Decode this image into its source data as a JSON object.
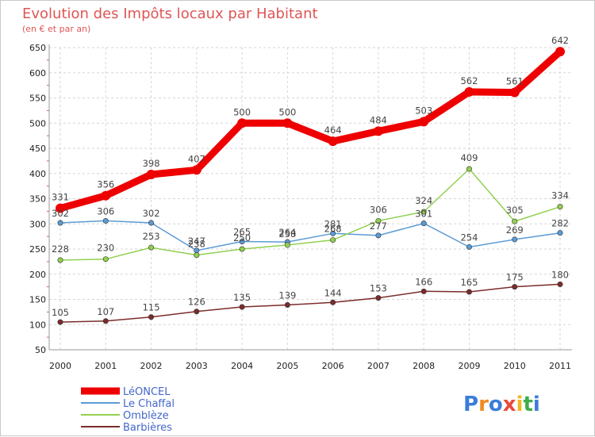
{
  "chart_data": {
    "type": "line",
    "title": "Evolution des Impôts locaux par Habitant",
    "subtitle": "(en € et par an)",
    "xlabel": "",
    "ylabel": "",
    "categories": [
      "2000",
      "2001",
      "2002",
      "2003",
      "2004",
      "2005",
      "2006",
      "2007",
      "2008",
      "2009",
      "2010",
      "2011"
    ],
    "ylim": [
      50,
      650
    ],
    "yticks": [
      50,
      100,
      150,
      200,
      250,
      300,
      350,
      400,
      450,
      500,
      550,
      600,
      650
    ],
    "grid": true,
    "legend_position": "bottom-left",
    "series": [
      {
        "name": "LéONCEL",
        "color": "#ee0000",
        "values": [
          331,
          356,
          398,
          407,
          500,
          500,
          464,
          484,
          503,
          562,
          561,
          642
        ]
      },
      {
        "name": "Le Chaffal",
        "color": "#5b9bd5",
        "values": [
          302,
          306,
          302,
          247,
          265,
          264,
          281,
          277,
          301,
          254,
          269,
          282
        ]
      },
      {
        "name": "Omblèze",
        "color": "#92d050",
        "values": [
          228,
          230,
          253,
          238,
          250,
          258,
          268,
          306,
          324,
          409,
          305,
          334
        ]
      },
      {
        "name": "Barbières",
        "color": "#7b2c2c",
        "values": [
          105,
          107,
          115,
          126,
          135,
          139,
          144,
          153,
          166,
          165,
          175,
          180
        ]
      }
    ]
  },
  "logo": {
    "letters": [
      "P",
      "r",
      "o",
      "x",
      "i",
      "t",
      "i"
    ],
    "colors": [
      "#3b7dd8",
      "#f08a24",
      "#3b7dd8",
      "#e84a3c",
      "#f0b71e",
      "#3fae49",
      "#3b7dd8"
    ]
  }
}
